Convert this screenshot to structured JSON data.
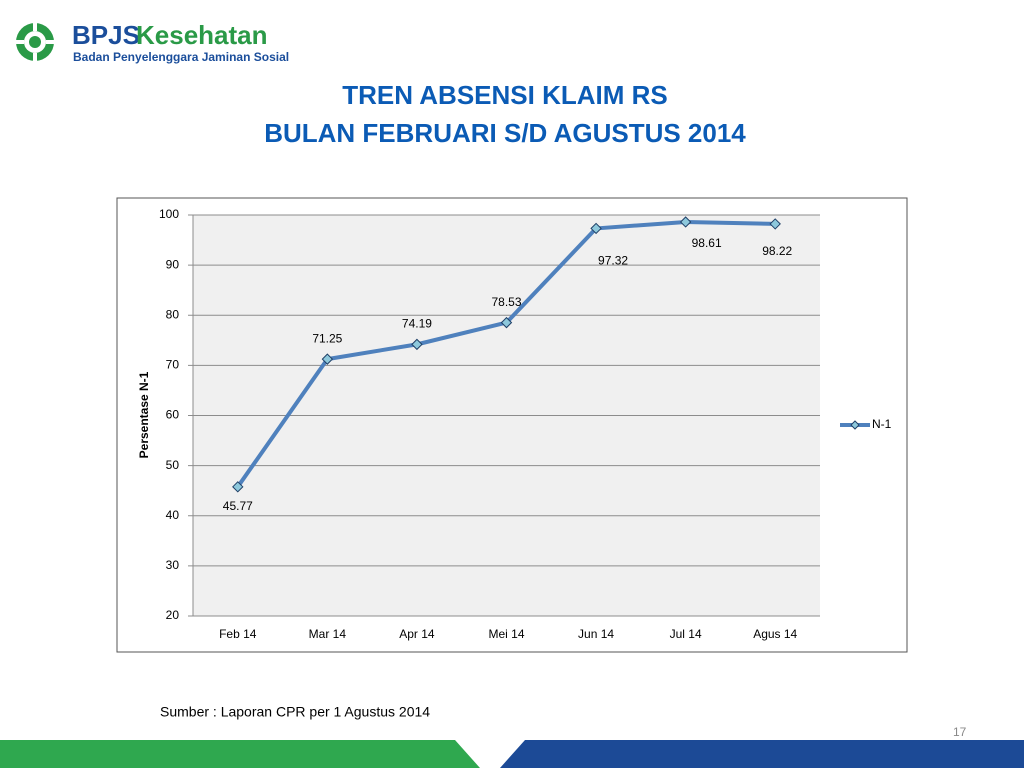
{
  "header": {
    "brand": "BPJS",
    "brand_suffix": "Kesehatan",
    "tagline": "Badan Penyelenggara Jaminan Sosial"
  },
  "chart_data": {
    "type": "line",
    "title": "TREN ABSENSI KLAIM RS",
    "subtitle": "BULAN FEBRUARI S/D AGUSTUS 2014",
    "ylabel": "Persentase N-1",
    "categories": [
      "Feb 14",
      "Mar 14",
      "Apr 14",
      "Mei 14",
      "Jun 14",
      "Jul 14",
      "Agus 14"
    ],
    "series": [
      {
        "name": "N-1",
        "color": "#4f81bd",
        "values": [
          45.77,
          71.25,
          74.19,
          78.53,
          97.32,
          98.61,
          98.22
        ]
      }
    ],
    "ylim": [
      20,
      100
    ],
    "yticks": [
      20,
      30,
      40,
      50,
      60,
      70,
      80,
      90,
      100
    ],
    "grid": true,
    "legend": "right"
  },
  "footer": {
    "source": "Sumber : Laporan CPR per 1 Agustus 2014",
    "page_number": "17"
  }
}
